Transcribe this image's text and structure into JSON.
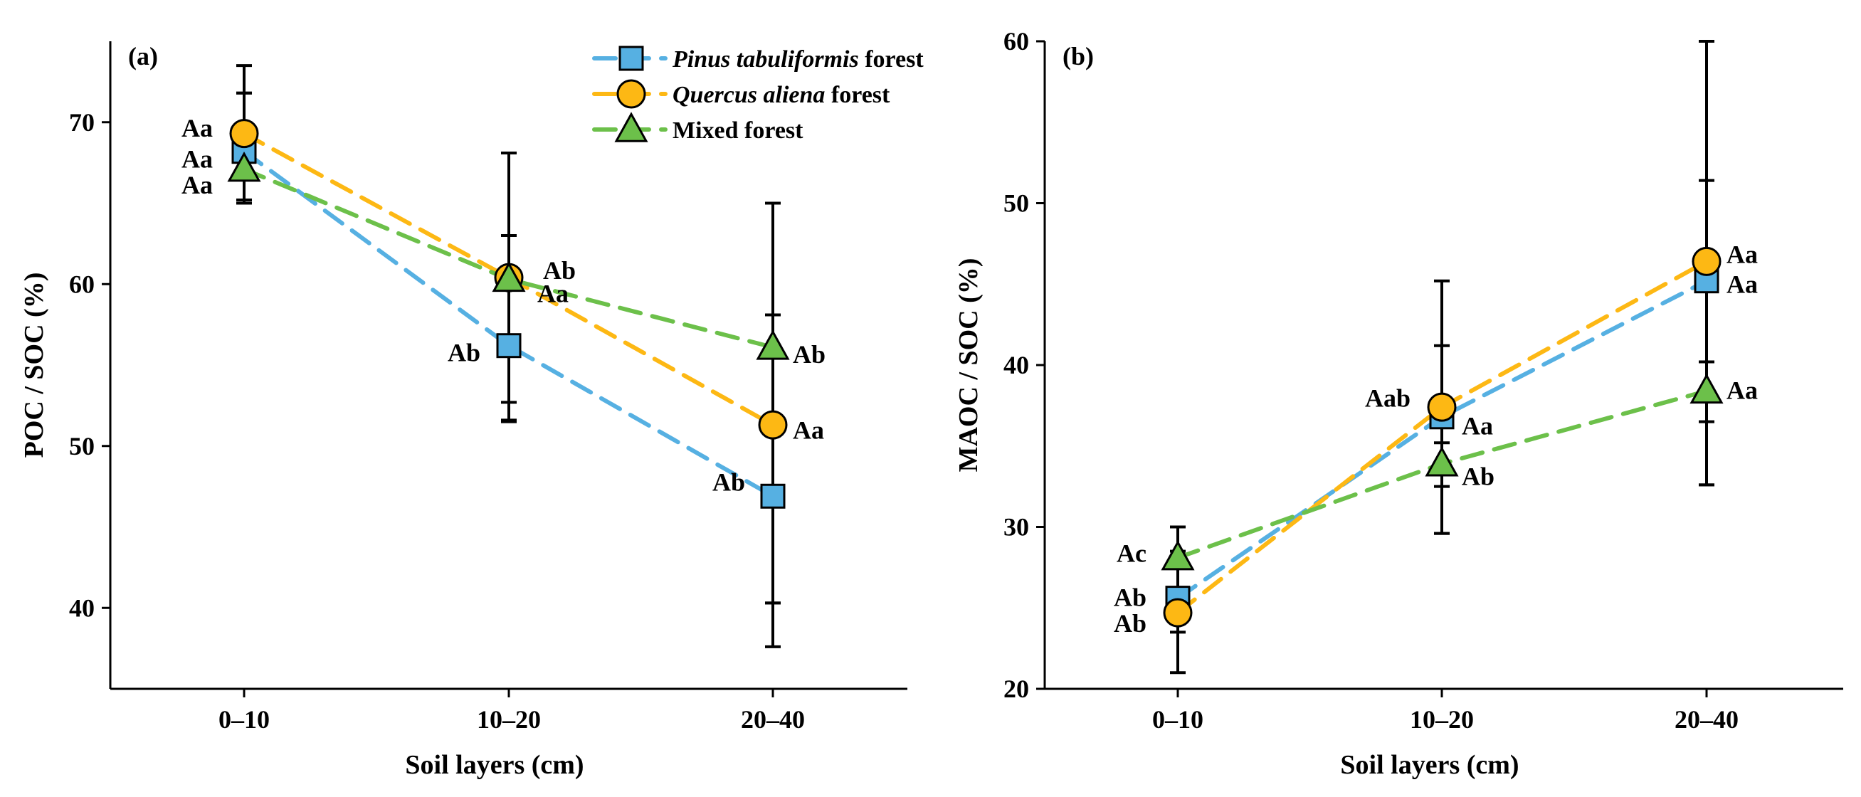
{
  "colors": {
    "pinus": "#56b0e2",
    "quercus": "#fdb814",
    "mixed": "#6cc04a"
  },
  "chart_data": [
    {
      "type": "line",
      "panel_label": "(a)",
      "xlabel": "Soil layers (cm)",
      "ylabel": "POC / SOC (%)",
      "categories": [
        "0–10",
        "10–20",
        "20–40"
      ],
      "ylim": [
        35,
        75
      ],
      "yticks": [
        40,
        50,
        60,
        70
      ],
      "legend_position": "top-right",
      "series": [
        {
          "key": "pinus",
          "name_italic": "Pinus tabuliformis",
          "name_suffix": " forest",
          "marker": "square",
          "values": [
            68.2,
            56.2,
            46.9
          ],
          "err_low": [
            65.0,
            51.5,
            37.6
          ],
          "err_high": [
            71.8,
            63.0,
            58.1
          ],
          "labels": [
            "Aa",
            "Ab",
            "Ab"
          ]
        },
        {
          "key": "quercus",
          "name_italic": "Quercus aliena",
          "name_suffix": " forest",
          "marker": "circle",
          "values": [
            69.3,
            60.4,
            51.3
          ],
          "err_low": [
            65.0,
            52.7,
            40.3
          ],
          "err_high": [
            73.5,
            68.1,
            65.0
          ],
          "labels": [
            "Aa",
            "Aa",
            "Aa"
          ]
        },
        {
          "key": "mixed",
          "name_italic": "",
          "name_suffix": "Mixed forest",
          "marker": "triangle",
          "values": [
            67.1,
            60.3,
            56.1
          ],
          "err_low": [
            65.2,
            51.6,
            40.3
          ],
          "err_high": [
            71.8,
            68.1,
            65.0
          ],
          "labels": [
            "Aa",
            "Ab",
            "Ab"
          ]
        }
      ]
    },
    {
      "type": "line",
      "panel_label": "(b)",
      "xlabel": "Soil layers (cm)",
      "ylabel": "MAOC / SOC (%)",
      "categories": [
        "0–10",
        "10–20",
        "20–40"
      ],
      "ylim": [
        20,
        60
      ],
      "yticks": [
        20,
        30,
        40,
        50,
        60
      ],
      "series": [
        {
          "key": "pinus",
          "marker": "square",
          "values": [
            25.6,
            36.8,
            45.2
          ],
          "err_low": [
            23.5,
            32.5,
            36.5
          ],
          "err_high": [
            28.5,
            41.2,
            51.4
          ],
          "labels": [
            "Ab",
            "Aa",
            "Aa"
          ]
        },
        {
          "key": "quercus",
          "marker": "circle",
          "values": [
            24.7,
            37.4,
            46.4
          ],
          "err_low": [
            21.0,
            29.6,
            32.6
          ],
          "err_high": [
            28.0,
            45.2,
            60.0
          ],
          "labels": [
            "Ab",
            "Aab",
            "Aa"
          ]
        },
        {
          "key": "mixed",
          "marker": "triangle",
          "values": [
            28.1,
            33.9,
            38.4
          ],
          "err_low": [
            26.0,
            29.6,
            32.6
          ],
          "err_high": [
            30.0,
            35.2,
            40.2
          ],
          "labels": [
            "Ac",
            "Ab",
            "Aa"
          ]
        }
      ]
    }
  ]
}
